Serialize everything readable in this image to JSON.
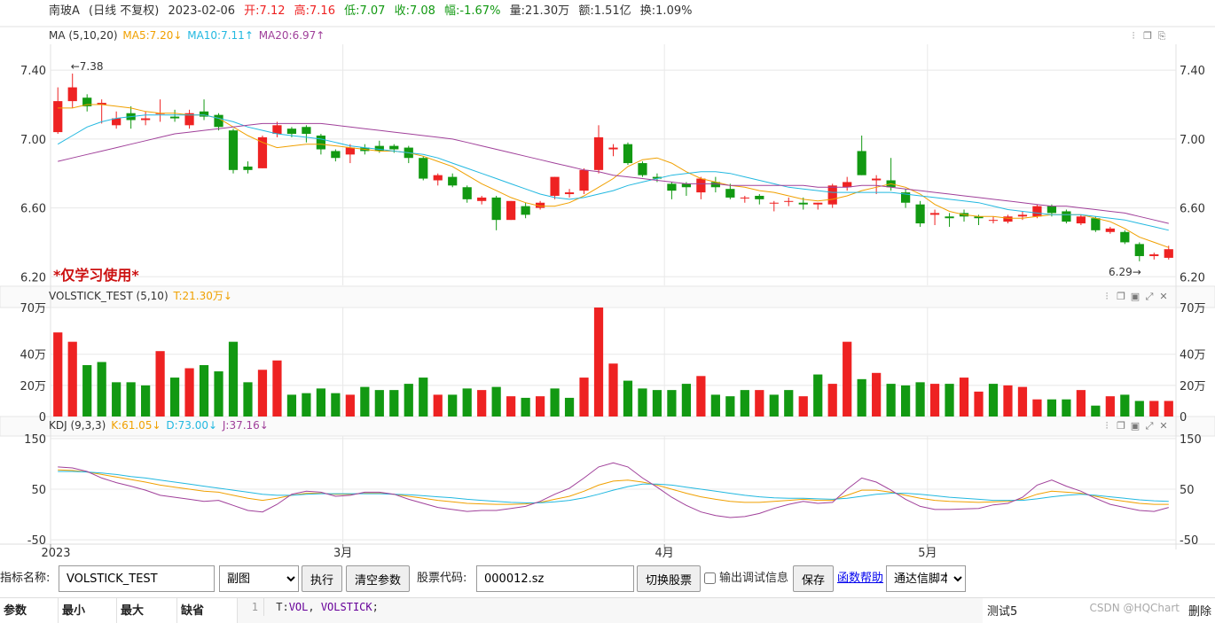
{
  "info": {
    "name": "南玻A",
    "period": "(日线 不复权)",
    "date": "2023-02-06",
    "open": "开:7.12",
    "high": "高:7.16",
    "low": "低:7.07",
    "close": "收:7.08",
    "change": "幅:-1.67%",
    "volume": "量:21.30万",
    "amount": "额:1.51亿",
    "turnover": "换:1.09%"
  },
  "ma_header": {
    "name": "MA (5,10,20)",
    "ma5": "MA5:7.20↓",
    "ma10": "MA10:7.11↑",
    "ma20": "MA20:6.97↑"
  },
  "vol_header": {
    "name": "VOLSTICK_TEST (5,10)",
    "t": "T:21.30万↓"
  },
  "kdj_header": {
    "name": "KDJ (9,3,3)",
    "k": "K:61.05↓",
    "d": "D:73.00↓",
    "j": "J:37.16↓"
  },
  "watermark": "*仅学习使用*",
  "colors": {
    "up": "#ee2222",
    "down": "#129912",
    "ma5": "#f0a000",
    "ma10": "#22b8e0",
    "ma20": "#a0409a",
    "grid": "#e8e8e8"
  },
  "chart_data": [
    {
      "type": "candlestick",
      "title": "MA (5,10,20)",
      "ylim": [
        6.15,
        7.55
      ],
      "yticks": [
        "7.40",
        "7.00",
        "6.60",
        "6.20"
      ],
      "ytick_values": [
        7.4,
        7.0,
        6.6,
        6.2
      ],
      "high_annotation": "←7.38",
      "low_annotation": "6.29→",
      "candles": [
        [
          7.04,
          7.22,
          7.3,
          7.03
        ],
        [
          7.22,
          7.3,
          7.38,
          7.18
        ],
        [
          7.24,
          7.19,
          7.26,
          7.16
        ],
        [
          7.2,
          7.21,
          7.23,
          7.09
        ],
        [
          7.08,
          7.12,
          7.16,
          7.06
        ],
        [
          7.15,
          7.11,
          7.19,
          7.06
        ],
        [
          7.11,
          7.12,
          7.16,
          7.08
        ],
        [
          7.15,
          7.15,
          7.23,
          7.1
        ],
        [
          7.13,
          7.12,
          7.17,
          7.1
        ],
        [
          7.08,
          7.15,
          7.17,
          7.06
        ],
        [
          7.16,
          7.13,
          7.23,
          7.11
        ],
        [
          7.14,
          7.07,
          7.15,
          7.05
        ],
        [
          7.05,
          6.82,
          7.06,
          6.8
        ],
        [
          6.84,
          6.82,
          6.87,
          6.8
        ],
        [
          6.83,
          7.01,
          7.02,
          6.83
        ],
        [
          7.03,
          7.08,
          7.1,
          7.01
        ],
        [
          7.06,
          7.03,
          7.07,
          7.01
        ],
        [
          7.07,
          7.03,
          7.08,
          6.98
        ],
        [
          7.02,
          6.94,
          7.03,
          6.91
        ],
        [
          6.93,
          6.89,
          6.94,
          6.87
        ],
        [
          6.91,
          6.95,
          6.97,
          6.86
        ],
        [
          6.95,
          6.93,
          6.97,
          6.91
        ],
        [
          6.96,
          6.93,
          6.99,
          6.92
        ],
        [
          6.96,
          6.94,
          6.97,
          6.92
        ],
        [
          6.95,
          6.89,
          6.96,
          6.86
        ],
        [
          6.89,
          6.77,
          6.9,
          6.76
        ],
        [
          6.76,
          6.79,
          6.8,
          6.73
        ],
        [
          6.78,
          6.73,
          6.8,
          6.72
        ],
        [
          6.72,
          6.65,
          6.73,
          6.63
        ],
        [
          6.64,
          6.66,
          6.67,
          6.62
        ],
        [
          6.66,
          6.53,
          6.67,
          6.47
        ],
        [
          6.53,
          6.64,
          6.64,
          6.53
        ],
        [
          6.61,
          6.56,
          6.63,
          6.54
        ],
        [
          6.6,
          6.63,
          6.64,
          6.59
        ],
        [
          6.67,
          6.78,
          6.78,
          6.65
        ],
        [
          6.68,
          6.69,
          6.71,
          6.66
        ],
        [
          6.7,
          6.82,
          6.83,
          6.68
        ],
        [
          6.82,
          7.01,
          7.08,
          6.8
        ],
        [
          6.94,
          6.95,
          6.97,
          6.9
        ],
        [
          6.97,
          6.86,
          6.98,
          6.85
        ],
        [
          6.86,
          6.79,
          6.87,
          6.78
        ],
        [
          6.78,
          6.77,
          6.8,
          6.75
        ],
        [
          6.74,
          6.7,
          6.75,
          6.65
        ],
        [
          6.74,
          6.72,
          6.75,
          6.67
        ],
        [
          6.69,
          6.77,
          6.78,
          6.65
        ],
        [
          6.75,
          6.72,
          6.78,
          6.69
        ],
        [
          6.71,
          6.66,
          6.74,
          6.65
        ],
        [
          6.66,
          6.66,
          6.67,
          6.63
        ],
        [
          6.67,
          6.65,
          6.68,
          6.62
        ],
        [
          6.63,
          6.63,
          6.64,
          6.58
        ],
        [
          6.64,
          6.64,
          6.66,
          6.61
        ],
        [
          6.63,
          6.62,
          6.66,
          6.59
        ],
        [
          6.62,
          6.63,
          6.63,
          6.59
        ],
        [
          6.62,
          6.73,
          6.74,
          6.6
        ],
        [
          6.72,
          6.75,
          6.78,
          6.7
        ],
        [
          6.93,
          6.79,
          7.02,
          6.79
        ],
        [
          6.76,
          6.77,
          6.79,
          6.68
        ],
        [
          6.76,
          6.72,
          6.89,
          6.7
        ],
        [
          6.69,
          6.63,
          6.71,
          6.6
        ],
        [
          6.62,
          6.51,
          6.64,
          6.49
        ],
        [
          6.56,
          6.57,
          6.59,
          6.5
        ],
        [
          6.55,
          6.54,
          6.57,
          6.49
        ],
        [
          6.57,
          6.55,
          6.59,
          6.52
        ],
        [
          6.55,
          6.54,
          6.56,
          6.5
        ],
        [
          6.53,
          6.53,
          6.55,
          6.51
        ],
        [
          6.52,
          6.55,
          6.56,
          6.51
        ],
        [
          6.55,
          6.56,
          6.58,
          6.53
        ],
        [
          6.55,
          6.61,
          6.62,
          6.54
        ],
        [
          6.61,
          6.57,
          6.62,
          6.55
        ],
        [
          6.58,
          6.52,
          6.59,
          6.51
        ],
        [
          6.51,
          6.55,
          6.56,
          6.5
        ],
        [
          6.54,
          6.47,
          6.55,
          6.46
        ],
        [
          6.46,
          6.48,
          6.49,
          6.45
        ],
        [
          6.46,
          6.4,
          6.47,
          6.39
        ],
        [
          6.39,
          6.32,
          6.4,
          6.29
        ],
        [
          6.32,
          6.33,
          6.34,
          6.3
        ],
        [
          6.31,
          6.36,
          6.38,
          6.3
        ]
      ],
      "ma5": [
        7.18,
        7.18,
        7.2,
        7.2,
        7.19,
        7.18,
        7.16,
        7.15,
        7.15,
        7.14,
        7.14,
        7.12,
        7.07,
        7.02,
        6.98,
        6.95,
        6.96,
        6.97,
        6.97,
        6.96,
        6.95,
        6.94,
        6.93,
        6.93,
        6.92,
        6.9,
        6.87,
        6.84,
        6.79,
        6.74,
        6.7,
        6.66,
        6.63,
        6.61,
        6.61,
        6.63,
        6.67,
        6.72,
        6.77,
        6.84,
        6.88,
        6.89,
        6.86,
        6.81,
        6.77,
        6.75,
        6.73,
        6.72,
        6.7,
        6.69,
        6.67,
        6.65,
        6.64,
        6.65,
        6.67,
        6.7,
        6.72,
        6.74,
        6.72,
        6.68,
        6.62,
        6.58,
        6.56,
        6.55,
        6.55,
        6.54,
        6.54,
        6.55,
        6.56,
        6.56,
        6.56,
        6.54,
        6.52,
        6.48,
        6.43,
        6.4,
        6.37
      ],
      "ma10": [
        6.97,
        7.02,
        7.07,
        7.1,
        7.12,
        7.13,
        7.14,
        7.14,
        7.14,
        7.14,
        7.14,
        7.12,
        7.1,
        7.07,
        7.05,
        7.03,
        7.02,
        7.01,
        7.0,
        6.98,
        6.96,
        6.95,
        6.94,
        6.93,
        6.92,
        6.91,
        6.89,
        6.86,
        6.83,
        6.8,
        6.77,
        6.74,
        6.71,
        6.68,
        6.66,
        6.65,
        6.66,
        6.68,
        6.7,
        6.73,
        6.75,
        6.77,
        6.79,
        6.8,
        6.81,
        6.81,
        6.8,
        6.78,
        6.76,
        6.74,
        6.72,
        6.71,
        6.7,
        6.69,
        6.69,
        6.69,
        6.69,
        6.69,
        6.68,
        6.67,
        6.66,
        6.65,
        6.64,
        6.63,
        6.61,
        6.59,
        6.58,
        6.57,
        6.56,
        6.56,
        6.56,
        6.55,
        6.54,
        6.53,
        6.51,
        6.49,
        6.47
      ],
      "ma20": [
        6.87,
        6.89,
        6.91,
        6.93,
        6.95,
        6.97,
        6.99,
        7.01,
        7.03,
        7.04,
        7.05,
        7.06,
        7.07,
        7.08,
        7.09,
        7.09,
        7.09,
        7.09,
        7.09,
        7.08,
        7.07,
        7.06,
        7.05,
        7.04,
        7.03,
        7.02,
        7.01,
        7.0,
        6.98,
        6.96,
        6.94,
        6.92,
        6.9,
        6.88,
        6.86,
        6.84,
        6.82,
        6.81,
        6.79,
        6.78,
        6.77,
        6.76,
        6.75,
        6.74,
        6.74,
        6.74,
        6.73,
        6.73,
        6.73,
        6.73,
        6.73,
        6.73,
        6.72,
        6.72,
        6.72,
        6.73,
        6.73,
        6.72,
        6.71,
        6.7,
        6.69,
        6.68,
        6.67,
        6.66,
        6.65,
        6.64,
        6.63,
        6.62,
        6.61,
        6.61,
        6.6,
        6.59,
        6.58,
        6.57,
        6.55,
        6.53,
        6.51
      ]
    },
    {
      "type": "bar",
      "title": "VOLSTICK_TEST (5,10)",
      "ylim": [
        0,
        70
      ],
      "yticks": [
        "70万",
        "40万",
        "20万",
        "0"
      ],
      "ytick_values": [
        70,
        40,
        20,
        0
      ],
      "values": [
        54,
        48,
        33,
        35,
        22,
        22,
        20,
        42,
        25,
        31,
        33,
        29,
        48,
        22,
        30,
        36,
        14,
        15,
        18,
        15,
        14,
        19,
        17,
        17,
        21,
        25,
        14,
        14,
        18,
        17,
        19,
        13,
        12,
        13,
        18,
        12,
        25,
        70,
        34,
        23,
        18,
        17,
        17,
        21,
        26,
        14,
        13,
        17,
        17,
        14,
        17,
        13,
        27,
        21,
        48,
        24,
        28,
        21,
        20,
        22,
        21,
        21,
        25,
        16,
        21,
        20,
        19,
        11,
        11,
        11,
        17,
        7,
        13,
        14,
        10,
        10,
        10
      ],
      "up": [
        true,
        true,
        false,
        false,
        false,
        false,
        false,
        true,
        false,
        true,
        false,
        false,
        false,
        false,
        true,
        true,
        false,
        false,
        false,
        false,
        true,
        false,
        false,
        false,
        false,
        false,
        true,
        false,
        false,
        true,
        false,
        true,
        false,
        true,
        false,
        false,
        true,
        true,
        true,
        false,
        false,
        false,
        false,
        false,
        true,
        false,
        false,
        false,
        true,
        false,
        false,
        true,
        false,
        true,
        true,
        false,
        true,
        false,
        false,
        false,
        true,
        false,
        true,
        true,
        false,
        true,
        true,
        true,
        false,
        false,
        true,
        false,
        true,
        false,
        false,
        true,
        true
      ]
    },
    {
      "type": "line",
      "title": "KDJ (9,3,3)",
      "ylim": [
        -55,
        155
      ],
      "yticks": [
        "150",
        "50",
        "-50"
      ],
      "ytick_values": [
        150,
        50,
        -50
      ],
      "series": [
        {
          "name": "K",
          "values": [
            88,
            87,
            84,
            79,
            74,
            69,
            64,
            58,
            54,
            50,
            46,
            44,
            38,
            32,
            28,
            32,
            38,
            42,
            42,
            40,
            40,
            42,
            42,
            40,
            36,
            32,
            28,
            25,
            22,
            21,
            20,
            20,
            21,
            24,
            30,
            36,
            46,
            58,
            66,
            68,
            64,
            58,
            50,
            42,
            35,
            30,
            26,
            24,
            24,
            26,
            28,
            30,
            28,
            28,
            38,
            48,
            48,
            44,
            38,
            32,
            28,
            26,
            25,
            24,
            25,
            26,
            30,
            40,
            46,
            44,
            42,
            36,
            30,
            26,
            22,
            20,
            20
          ]
        },
        {
          "name": "D",
          "values": [
            85,
            85,
            84,
            82,
            79,
            75,
            72,
            68,
            64,
            60,
            56,
            52,
            48,
            44,
            40,
            38,
            38,
            40,
            41,
            41,
            41,
            41,
            41,
            40,
            39,
            37,
            35,
            33,
            30,
            28,
            26,
            24,
            23,
            23,
            25,
            28,
            33,
            40,
            48,
            55,
            60,
            60,
            58,
            54,
            50,
            46,
            42,
            38,
            35,
            33,
            32,
            32,
            31,
            30,
            32,
            36,
            40,
            42,
            42,
            40,
            37,
            34,
            32,
            30,
            28,
            28,
            28,
            31,
            35,
            38,
            40,
            38,
            35,
            32,
            29,
            27,
            26
          ]
        },
        {
          "name": "J",
          "values": [
            94,
            92,
            85,
            72,
            63,
            56,
            48,
            38,
            34,
            30,
            26,
            28,
            18,
            8,
            5,
            20,
            40,
            46,
            44,
            36,
            38,
            44,
            44,
            40,
            30,
            22,
            14,
            10,
            6,
            8,
            8,
            12,
            16,
            26,
            40,
            52,
            72,
            94,
            102,
            94,
            72,
            54,
            34,
            18,
            5,
            -2,
            -6,
            -4,
            2,
            12,
            20,
            26,
            22,
            24,
            50,
            72,
            64,
            48,
            30,
            16,
            10,
            10,
            11,
            12,
            19,
            22,
            34,
            58,
            68,
            56,
            46,
            32,
            20,
            14,
            8,
            6,
            14
          ]
        }
      ]
    }
  ],
  "xaxis": {
    "labels": [
      "2023",
      "3月",
      "4月",
      "5月"
    ],
    "indexes": [
      0,
      20,
      42,
      60
    ]
  },
  "form": {
    "indicator_label": "指标名称:",
    "indicator_value": "VOLSTICK_TEST",
    "panel_select": "副图",
    "run_button": "执行",
    "clear_button": "清空参数",
    "stock_label": "股票代码:",
    "stock_value": "000012.sz",
    "switch_button": "切换股票",
    "debug_label": "输出调试信息",
    "save_button": "保存",
    "help_link": "函数帮助",
    "script_select": "通达信脚本"
  },
  "params": {
    "col_param": "参数",
    "col_min": "最小",
    "col_max": "最大",
    "col_default": "缺省",
    "line_no": "1",
    "code_a": "T:",
    "code_b": "VOL",
    "code_c": ", ",
    "code_d": "VOLSTICK",
    "code_e": ";",
    "test_label": "测试5",
    "delete_label": "删除",
    "csdn": "CSDN @HQChart"
  }
}
